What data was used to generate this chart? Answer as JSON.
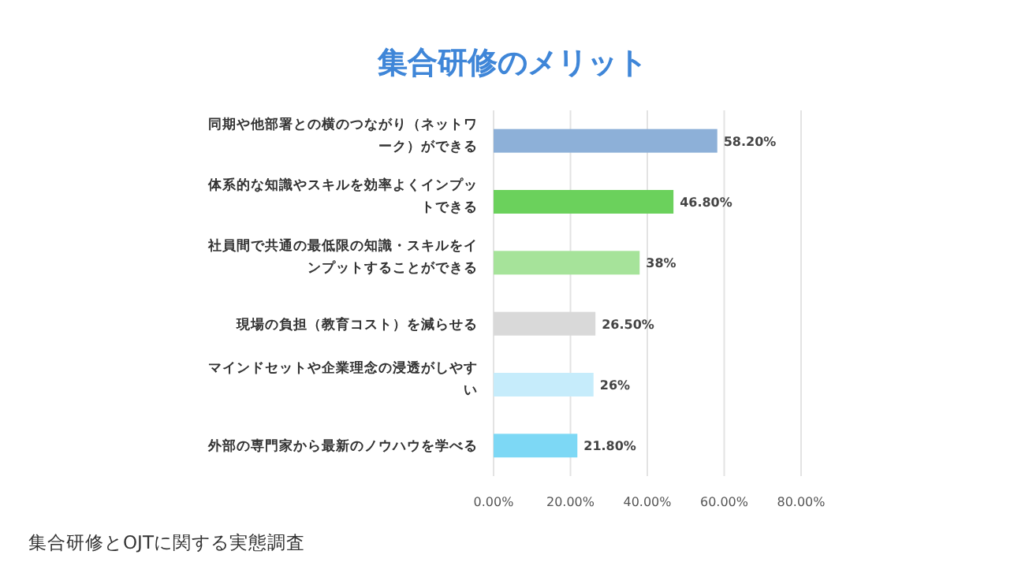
{
  "chart_data": {
    "type": "bar",
    "orientation": "horizontal",
    "title": "集合研修のメリット",
    "categories": [
      "同期や他部署との横のつながり（ネットワーク）ができる",
      "体系的な知識やスキルを効率よくインプットできる",
      "社員間で共通の最低限の知識・スキルをインプットすることができる",
      "現場の負担（教育コスト）を減らせる",
      "マインドセットや企業理念の浸透がしやすい",
      "外部の専門家から最新のノウハウを学べる"
    ],
    "values": [
      58.2,
      46.8,
      38,
      26.5,
      26,
      21.8
    ],
    "colors": [
      "#8db0d8",
      "#6bd15c",
      "#a6e39a",
      "#d9d9d9",
      "#c6ecfb",
      "#7dd8f5"
    ],
    "value_labels": [
      "58.20%",
      "46.80%",
      "38%",
      "26.50%",
      "26%",
      "21.80%"
    ],
    "xlim": [
      0,
      80
    ],
    "xticks": [
      {
        "value": 0,
        "label": "0.00%"
      },
      {
        "value": 20,
        "label": "20.00%"
      },
      {
        "value": 40,
        "label": "40.00%"
      },
      {
        "value": 60,
        "label": "60.00%"
      },
      {
        "value": 80,
        "label": "80.00%"
      }
    ],
    "grid": "x",
    "annotations": [
      "集合研修とOJTに関する実態調査"
    ]
  }
}
